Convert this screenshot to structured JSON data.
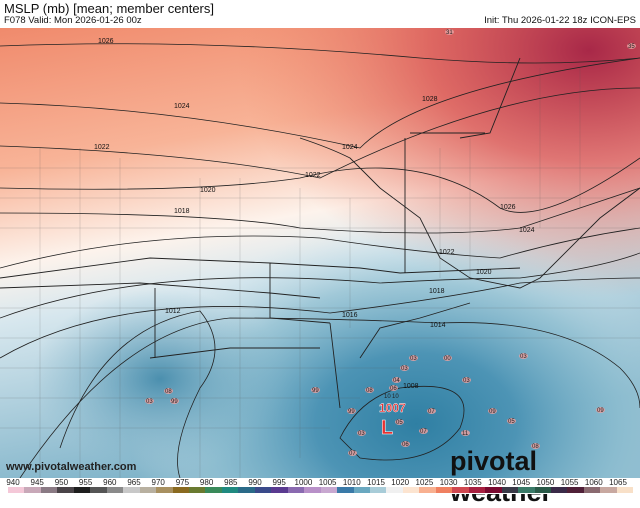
{
  "header": {
    "title": "MSLP (mb) [mean; member centers]",
    "valid": "F078 Valid: Mon 2026-01-26 00z",
    "init": "Init: Thu 2026-01-22 18z ICON-EPS"
  },
  "footer": {
    "site": "www.pivotalweather.com",
    "logo": "pivotal weather"
  },
  "low_center": {
    "symbol": "L",
    "value": "1007",
    "member_labels": [
      "10",
      "10"
    ]
  },
  "isobars": [
    {
      "label": "1026"
    },
    {
      "label": "1024"
    },
    {
      "label": "1022"
    },
    {
      "label": "1020"
    },
    {
      "label": "1018"
    },
    {
      "label": "1024"
    },
    {
      "label": "1022"
    },
    {
      "label": "1028"
    },
    {
      "label": "1026"
    },
    {
      "label": "1024"
    },
    {
      "label": "1022"
    },
    {
      "label": "1020"
    },
    {
      "label": "1018"
    },
    {
      "label": "1016"
    },
    {
      "label": "1014"
    },
    {
      "label": "1012"
    },
    {
      "label": "1008"
    }
  ],
  "member_centers": [
    "31",
    "35",
    "03",
    "00",
    "03",
    "03",
    "04",
    "06",
    "08",
    "99",
    "07",
    "09",
    "05",
    "03",
    "07",
    "11",
    "06",
    "05",
    "07",
    "09",
    "08",
    "08",
    "99",
    "03",
    "99",
    "03"
  ],
  "colorbar": {
    "labels": [
      "940",
      "945",
      "950",
      "955",
      "960",
      "965",
      "970",
      "975",
      "980",
      "985",
      "990",
      "995",
      "1000",
      "1005",
      "1010",
      "1015",
      "1020",
      "1025",
      "1030",
      "1035",
      "1040",
      "1045",
      "1050",
      "1055",
      "1060",
      "1065"
    ],
    "colors": [
      "#f4c8d8",
      "#c8a8b8",
      "#8a7a84",
      "#4a4448",
      "#1e1e1e",
      "#555555",
      "#8a8a8a",
      "#c8c8c8",
      "#b8b0a0",
      "#a89060",
      "#8a6a20",
      "#6a7a30",
      "#3a8a5a",
      "#208a80",
      "#2a6a88",
      "#3a4a8a",
      "#5a3a90",
      "#8a6ab0",
      "#b890c8",
      "#c8a8d0",
      "#3a7aa8",
      "#6aa8c0",
      "#a8ccd8",
      "#f0f0f0",
      "#fce4d0",
      "#f8b090",
      "#f08060",
      "#d04850",
      "#a82040",
      "#7a0a30",
      "#3a3a48",
      "#3a7a68",
      "#2a5a48",
      "#3a2a48",
      "#502038",
      "#8a6a70",
      "#c8a8a0",
      "#f8e0c8"
    ]
  }
}
